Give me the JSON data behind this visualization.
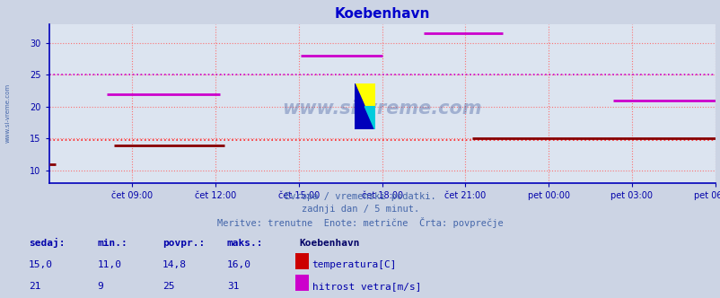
{
  "title": "Koebenhavn",
  "bg_color": "#ccd4e4",
  "plot_bg_color": "#dce4f0",
  "grid_color": "#ff6666",
  "axis_color": "#0000bb",
  "title_color": "#0000cc",
  "tick_label_color": "#0000aa",
  "watermark": "www.si-vreme.com",
  "ylim": [
    8.0,
    33.0
  ],
  "yticks": [
    10,
    15,
    20,
    25,
    30
  ],
  "xlim": [
    0,
    288
  ],
  "xtick_positions": [
    36,
    72,
    108,
    144,
    180,
    216,
    252,
    288
  ],
  "xtick_labels": [
    "čet 09:00",
    "čet 12:00",
    "čet 15:00",
    "čet 18:00",
    "čet 21:00",
    "pet 00:00",
    "pet 03:00",
    "pet 06:00"
  ],
  "temp_avg": 14.8,
  "wind_avg": 25.0,
  "temp_color": "#880000",
  "wind_color": "#cc00cc",
  "temp_avg_color": "#ff2222",
  "wind_avg_color": "#cc00cc",
  "temp_segments": [
    {
      "x_start": 0,
      "x_end": 3,
      "y": 11.0
    },
    {
      "x_start": 28,
      "x_end": 76,
      "y": 14.0
    },
    {
      "x_start": 183,
      "x_end": 288,
      "y": 15.0
    }
  ],
  "wind_segments": [
    {
      "x_start": 25,
      "x_end": 74,
      "y": 22.0
    },
    {
      "x_start": 109,
      "x_end": 144,
      "y": 28.0
    },
    {
      "x_start": 162,
      "x_end": 196,
      "y": 31.5
    },
    {
      "x_start": 244,
      "x_end": 288,
      "y": 21.0
    }
  ],
  "subtitle_lines": [
    "Evropa / vremenski podatki.",
    "zadnji dan / 5 minut.",
    "Meritve: trenutne  Enote: metrične  Črta: povprečje"
  ],
  "subtitle_color": "#4466aa",
  "legend_title": "Koebenhavn",
  "legend_color": "#000066",
  "legend_items": [
    {
      "label": "temperatura[C]",
      "color": "#cc0000",
      "sedaj": "15,0",
      "min": "11,0",
      "povpr": "14,8",
      "maks": "16,0"
    },
    {
      "label": "hitrost vetra[m/s]",
      "color": "#cc00cc",
      "sedaj": "21",
      "min": "9",
      "povpr": "25",
      "maks": "31"
    }
  ],
  "stat_header": [
    "sedaj:",
    "min.:",
    "povpr.:",
    "maks.:"
  ],
  "bottom_text_color": "#0000aa",
  "side_label_color": "#4466aa"
}
